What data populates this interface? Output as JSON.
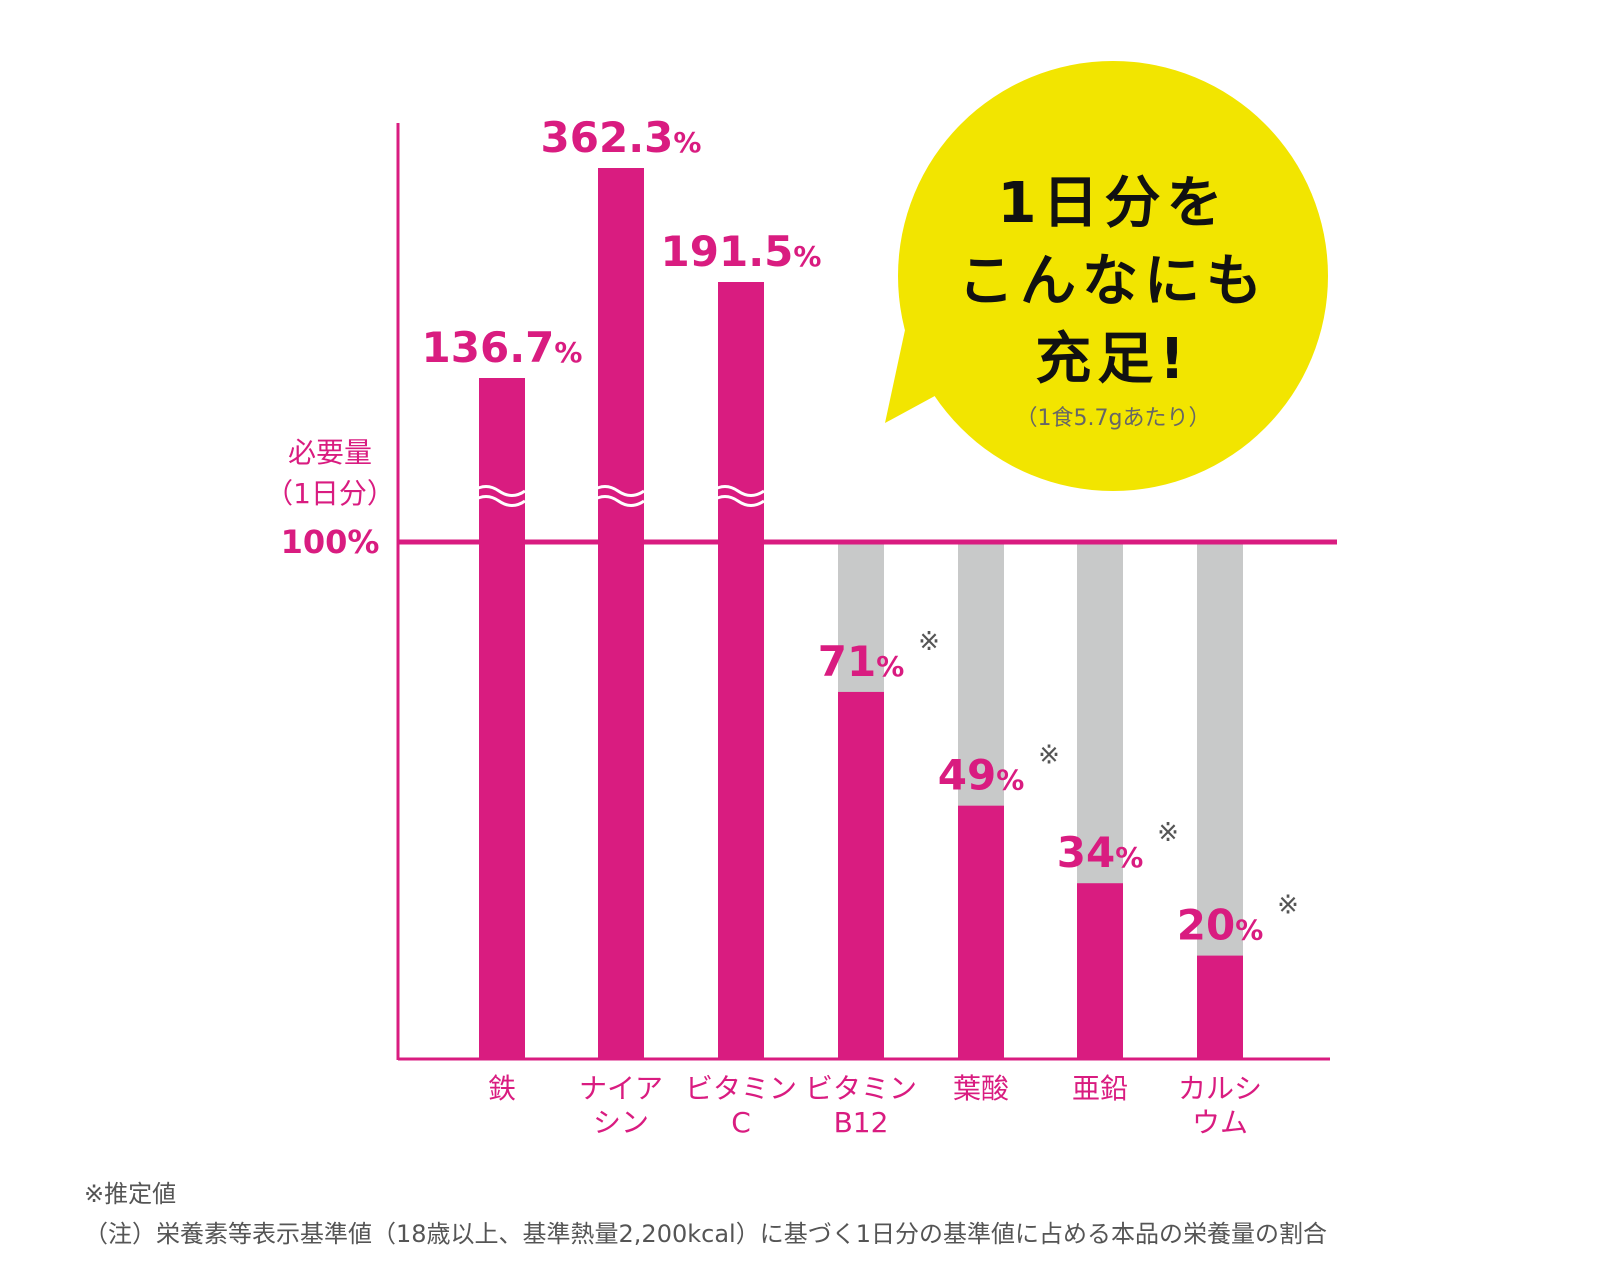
{
  "colors": {
    "accent": "#d91c80",
    "remainder": "#c8c9c9",
    "bubble": "#f2e500",
    "text_dark": "#111111",
    "note_gray": "#666666"
  },
  "reference": {
    "label_line1": "必要量",
    "label_line2": "（1日分）",
    "value_label": "100%"
  },
  "bubble": {
    "line1": "1日分を",
    "line2": "こんなにも",
    "line3": "充足!",
    "note": "（1食5.7gあたり）"
  },
  "chart_data": {
    "type": "bar",
    "categories": [
      "鉄",
      "ナイアシン",
      "ビタミンC",
      "ビタミンB12",
      "葉酸",
      "亜鉛",
      "カルシウム"
    ],
    "category_lines": [
      [
        "鉄"
      ],
      [
        "ナイア",
        "シン"
      ],
      [
        "ビタミン",
        "C"
      ],
      [
        "ビタミン",
        "B12"
      ],
      [
        "葉酸"
      ],
      [
        "亜鉛"
      ],
      [
        "カルシ",
        "ウム"
      ]
    ],
    "values": [
      136.7,
      362.3,
      191.5,
      71,
      49,
      34,
      20
    ],
    "value_labels": [
      "136.7",
      "362.3",
      "191.5",
      "71",
      "49",
      "34",
      "20"
    ],
    "unit": "%",
    "estimated_marker": "※",
    "estimated": [
      false,
      false,
      false,
      true,
      true,
      true,
      true
    ],
    "reference_line": 100,
    "axis_break": true
  },
  "footnotes": {
    "line1": "※推定値",
    "line2": "（注）栄養素等表示基準値（18歳以上、基準熱量2,200kcal）に基づく1日分の基準値に占める本品の栄養量の割合"
  }
}
